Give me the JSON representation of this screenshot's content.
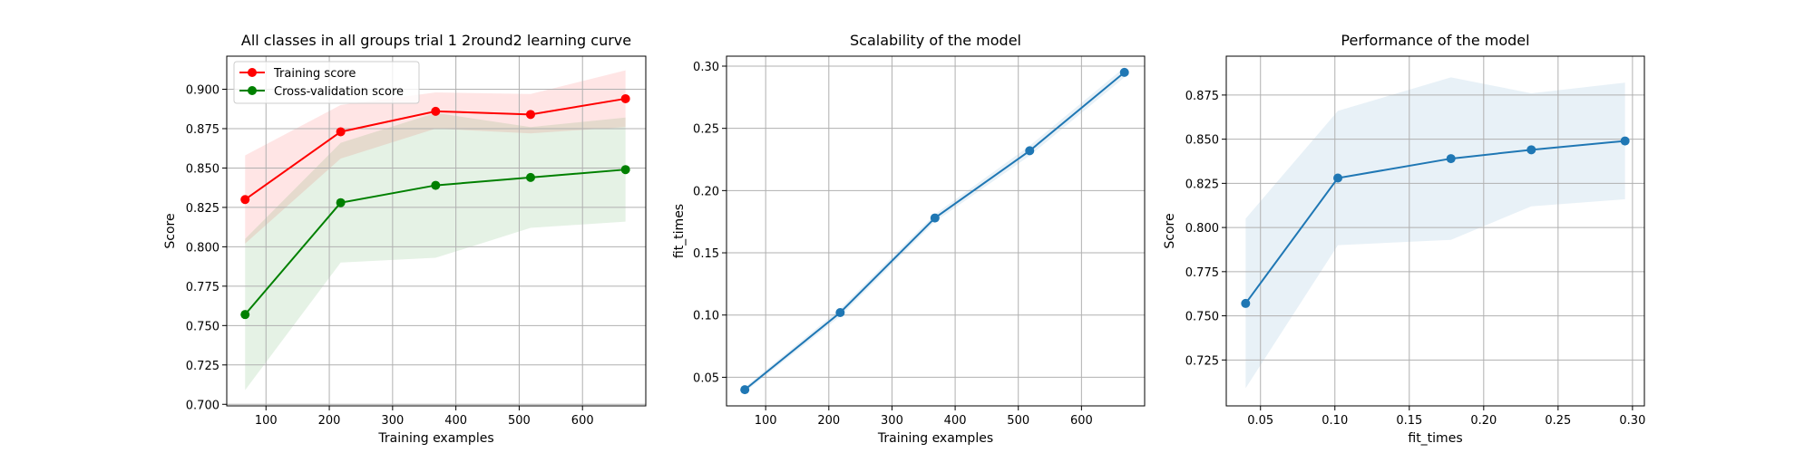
{
  "colors": {
    "training": "#ff0000",
    "cv": "#008000",
    "blue": "#1f77b4",
    "grid": "#b0b0b0",
    "axis": "#000000"
  },
  "chart_data": [
    {
      "type": "line",
      "title": "All classes in all groups trial 1 2round2 learning curve",
      "xlabel": "Training examples",
      "ylabel": "Score",
      "xlim": [
        38,
        700
      ],
      "ylim": [
        0.699,
        0.921
      ],
      "xticks": [
        100,
        200,
        300,
        400,
        500,
        600
      ],
      "yticks": [
        0.7,
        0.725,
        0.75,
        0.775,
        0.8,
        0.825,
        0.85,
        0.875,
        0.9
      ],
      "ytick_labels": [
        "0.700",
        "0.725",
        "0.750",
        "0.775",
        "0.800",
        "0.825",
        "0.850",
        "0.875",
        "0.900"
      ],
      "grid": true,
      "legend": "upper-left",
      "x": [
        67,
        218,
        368,
        518,
        668
      ],
      "series": [
        {
          "name": "Training score",
          "color": "#ff0000",
          "values": [
            0.83,
            0.873,
            0.886,
            0.884,
            0.894
          ],
          "band_low": [
            0.802,
            0.856,
            0.875,
            0.872,
            0.876
          ],
          "band_high": [
            0.858,
            0.89,
            0.898,
            0.897,
            0.912
          ]
        },
        {
          "name": "Cross-validation score",
          "color": "#008000",
          "values": [
            0.757,
            0.828,
            0.839,
            0.844,
            0.849
          ],
          "band_low": [
            0.709,
            0.79,
            0.793,
            0.812,
            0.816
          ],
          "band_high": [
            0.805,
            0.866,
            0.885,
            0.876,
            0.882
          ]
        }
      ]
    },
    {
      "type": "line",
      "title": "Scalability of the model",
      "xlabel": "Training examples",
      "ylabel": "fit_times",
      "xlim": [
        38,
        700
      ],
      "ylim": [
        0.027,
        0.308
      ],
      "xticks": [
        100,
        200,
        300,
        400,
        500,
        600
      ],
      "yticks": [
        0.05,
        0.1,
        0.15,
        0.2,
        0.25,
        0.3
      ],
      "ytick_labels": [
        "0.05",
        "0.10",
        "0.15",
        "0.20",
        "0.25",
        "0.30"
      ],
      "grid": true,
      "x": [
        67,
        218,
        368,
        518,
        668
      ],
      "series": [
        {
          "color": "#1f77b4",
          "values": [
            0.04,
            0.102,
            0.178,
            0.232,
            0.295
          ],
          "band_low": [
            0.038,
            0.099,
            0.175,
            0.228,
            0.291
          ],
          "band_high": [
            0.042,
            0.105,
            0.181,
            0.236,
            0.299
          ]
        }
      ]
    },
    {
      "type": "line",
      "title": "Performance of the model",
      "xlabel": "fit_times",
      "ylabel": "Score",
      "xlim": [
        0.027,
        0.308
      ],
      "ylim": [
        0.699,
        0.897
      ],
      "xticks": [
        0.05,
        0.1,
        0.15,
        0.2,
        0.25,
        0.3
      ],
      "xtick_labels": [
        "0.05",
        "0.10",
        "0.15",
        "0.20",
        "0.25",
        "0.30"
      ],
      "yticks": [
        0.725,
        0.75,
        0.775,
        0.8,
        0.825,
        0.85,
        0.875
      ],
      "ytick_labels": [
        "0.725",
        "0.750",
        "0.775",
        "0.800",
        "0.825",
        "0.850",
        "0.875"
      ],
      "grid": true,
      "x": [
        0.04,
        0.102,
        0.178,
        0.232,
        0.295
      ],
      "series": [
        {
          "color": "#1f77b4",
          "values": [
            0.757,
            0.828,
            0.839,
            0.844,
            0.849
          ],
          "band_low": [
            0.709,
            0.79,
            0.793,
            0.812,
            0.816
          ],
          "band_high": [
            0.805,
            0.866,
            0.885,
            0.876,
            0.882
          ]
        }
      ]
    }
  ]
}
